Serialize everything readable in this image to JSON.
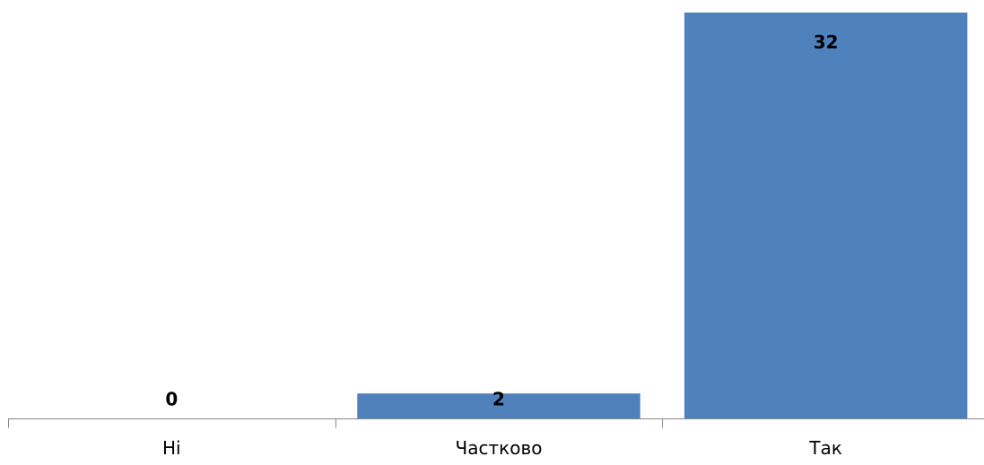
{
  "chart_data": {
    "type": "bar",
    "categories": [
      "Ні",
      "Частково",
      "Так"
    ],
    "values": [
      0,
      2,
      32
    ],
    "data_labels": [
      "0",
      "2",
      "32"
    ],
    "title": "",
    "xlabel": "",
    "ylabel": "",
    "ylim": [
      0,
      32
    ],
    "grid": false,
    "legend": "none",
    "colors": {
      "bar": "#4F81BD",
      "axis": "#868686",
      "text": "#000000"
    }
  }
}
